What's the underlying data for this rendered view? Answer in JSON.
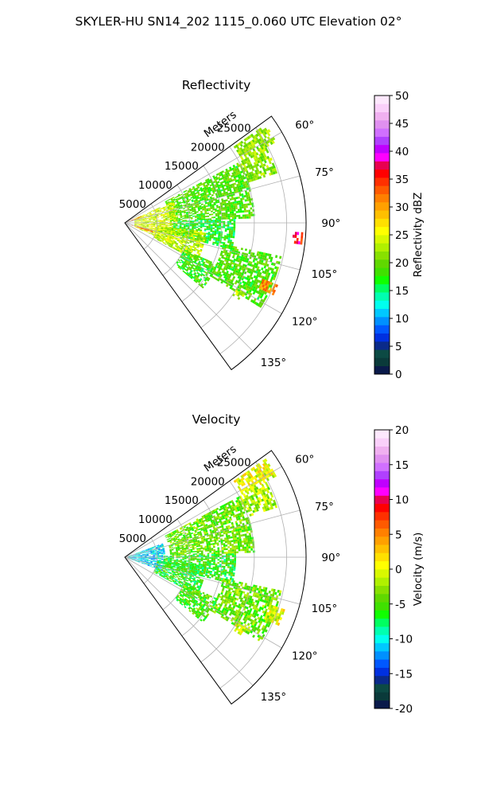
{
  "figure": {
    "title": "SKYLER-HU  SN14_202  1115_0.060 UTC Elevation 02°"
  },
  "chart_data": [
    {
      "type": "heatmap",
      "subtype": "polar-sector-ppi",
      "title": "Reflectivity",
      "radial_axis_label": "Meters",
      "radial_ticks": [
        5000,
        10000,
        15000,
        20000,
        25000
      ],
      "r_max": 28000,
      "theta_ticks_deg": [
        60,
        75,
        90,
        105,
        120,
        135
      ],
      "theta_range_deg": [
        54,
        144
      ],
      "grid": true,
      "colorbar": {
        "label": "Reflectivity dBZ",
        "min": 0,
        "max": 50,
        "ticks": [
          0,
          5,
          10,
          15,
          20,
          25,
          30,
          35,
          40,
          45,
          50
        ],
        "colors": [
          "#0a1a4a",
          "#0a3a3a",
          "#0c4a44",
          "#0a2a8a",
          "#0030e0",
          "#0058ff",
          "#0090ff",
          "#00c8ff",
          "#00ffee",
          "#00ffb0",
          "#00ff60",
          "#10ff00",
          "#40e000",
          "#60d800",
          "#88e000",
          "#b0f000",
          "#d8f800",
          "#ffff00",
          "#ffe000",
          "#ffc000",
          "#ffa000",
          "#ff8000",
          "#ff5a00",
          "#ff3000",
          "#ff0000",
          "#e80050",
          "#ff00ff",
          "#c000ff",
          "#b040ff",
          "#d070ff",
          "#e090f0",
          "#f0b0f0",
          "#fad0fa",
          "#fde8fd"
        ]
      },
      "regions": [
        {
          "theta": [
            55,
            62
          ],
          "r": [
            20500,
            26500
          ],
          "value": 22
        },
        {
          "theta": [
            62,
            72
          ],
          "r": [
            20000,
            24500
          ],
          "value": 21
        },
        {
          "theta": [
            62,
            88
          ],
          "r": [
            7000,
            20000
          ],
          "value": 19
        },
        {
          "theta": [
            66,
            114
          ],
          "r": [
            1500,
            8000
          ],
          "value": 24
        },
        {
          "theta": [
            88,
            104
          ],
          "r": [
            7500,
            17000
          ],
          "value": 17
        },
        {
          "theta": [
            96,
            118
          ],
          "r": [
            5000,
            12500
          ],
          "value": 23
        },
        {
          "theta": [
            102,
            122
          ],
          "r": [
            15500,
            24500
          ],
          "value": 19
        },
        {
          "theta": [
            114,
            130
          ],
          "r": [
            10000,
            15500
          ],
          "value": 18
        },
        {
          "theta": [
            112,
            116
          ],
          "r": [
            23000,
            25500
          ],
          "value": 31
        },
        {
          "theta": [
            68,
            72
          ],
          "r": [
            500,
            2500
          ],
          "value": 34
        },
        {
          "theta": [
            104,
            110
          ],
          "r": [
            1000,
            4500
          ],
          "value": 33
        },
        {
          "theta": [
            93,
            97
          ],
          "r": [
            26000,
            27500
          ],
          "value": 36
        },
        {
          "theta": [
            120,
            124
          ],
          "r": [
            20000,
            21500
          ],
          "value": 23
        }
      ]
    },
    {
      "type": "heatmap",
      "subtype": "polar-sector-ppi",
      "title": "Velocity",
      "radial_axis_label": "Meters",
      "radial_ticks": [
        5000,
        10000,
        15000,
        20000,
        25000
      ],
      "r_max": 28000,
      "theta_ticks_deg": [
        60,
        75,
        90,
        105,
        120,
        135
      ],
      "theta_range_deg": [
        54,
        144
      ],
      "grid": true,
      "colorbar": {
        "label": "Velocity (m/s)",
        "min": -20,
        "max": 20,
        "ticks": [
          -20,
          -15,
          -10,
          -5,
          0,
          5,
          10,
          15,
          20
        ],
        "colors": [
          "#0a1a4a",
          "#0a3a3a",
          "#0c4a44",
          "#0a2a8a",
          "#0030e0",
          "#0058ff",
          "#0090ff",
          "#00c8ff",
          "#00ffee",
          "#00ffb0",
          "#00ff60",
          "#10ff00",
          "#40e000",
          "#60d800",
          "#88e000",
          "#b0f000",
          "#d8f800",
          "#ffff00",
          "#ffe000",
          "#ffc000",
          "#ffa000",
          "#ff8000",
          "#ff5a00",
          "#ff3000",
          "#ff0000",
          "#e80050",
          "#ff00ff",
          "#c000ff",
          "#b040ff",
          "#d070ff",
          "#e090f0",
          "#f0b0f0",
          "#fad0fa",
          "#fde8fd"
        ]
      },
      "regions": [
        {
          "theta": [
            55,
            62
          ],
          "r": [
            20500,
            26500
          ],
          "value": 0
        },
        {
          "theta": [
            62,
            72
          ],
          "r": [
            20000,
            24500
          ],
          "value": -2
        },
        {
          "theta": [
            62,
            88
          ],
          "r": [
            7000,
            20000
          ],
          "value": -4
        },
        {
          "theta": [
            70,
            110
          ],
          "r": [
            500,
            6000
          ],
          "value": -11
        },
        {
          "theta": [
            88,
            104
          ],
          "r": [
            6000,
            17000
          ],
          "value": -6
        },
        {
          "theta": [
            96,
            118
          ],
          "r": [
            5000,
            12500
          ],
          "value": -6
        },
        {
          "theta": [
            102,
            122
          ],
          "r": [
            15500,
            24500
          ],
          "value": -4
        },
        {
          "theta": [
            114,
            130
          ],
          "r": [
            10000,
            15500
          ],
          "value": -5
        },
        {
          "theta": [
            108,
            114
          ],
          "r": [
            23500,
            26000
          ],
          "value": 0
        },
        {
          "theta": [
            120,
            124
          ],
          "r": [
            20000,
            21500
          ],
          "value": 0
        }
      ]
    }
  ]
}
